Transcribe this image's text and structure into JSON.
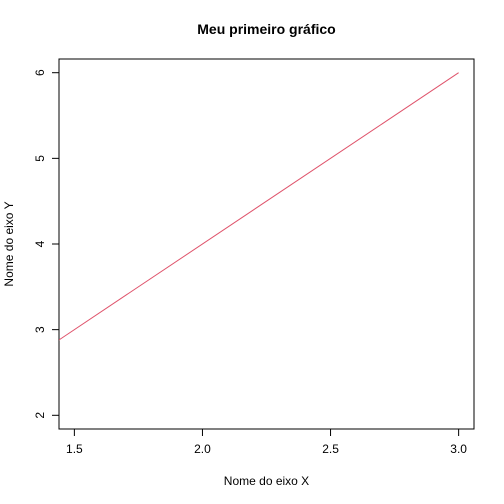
{
  "chart_data": {
    "type": "line",
    "title": "Meu primeiro gráfico",
    "xlabel": "Nome do eixo X",
    "ylabel": "Nome do eixo Y",
    "x_ticks": [
      "1.5",
      "2.0",
      "2.5",
      "3.0"
    ],
    "y_ticks": [
      "2",
      "3",
      "4",
      "5",
      "6"
    ],
    "xlim": [
      1.44,
      3.06
    ],
    "ylim": [
      1.84,
      6.16
    ],
    "grid": false,
    "legend": "none",
    "series": [
      {
        "x": [
          1.0,
          3.0
        ],
        "y": [
          2.0,
          6.0
        ],
        "color": "#DF536B"
      }
    ]
  }
}
